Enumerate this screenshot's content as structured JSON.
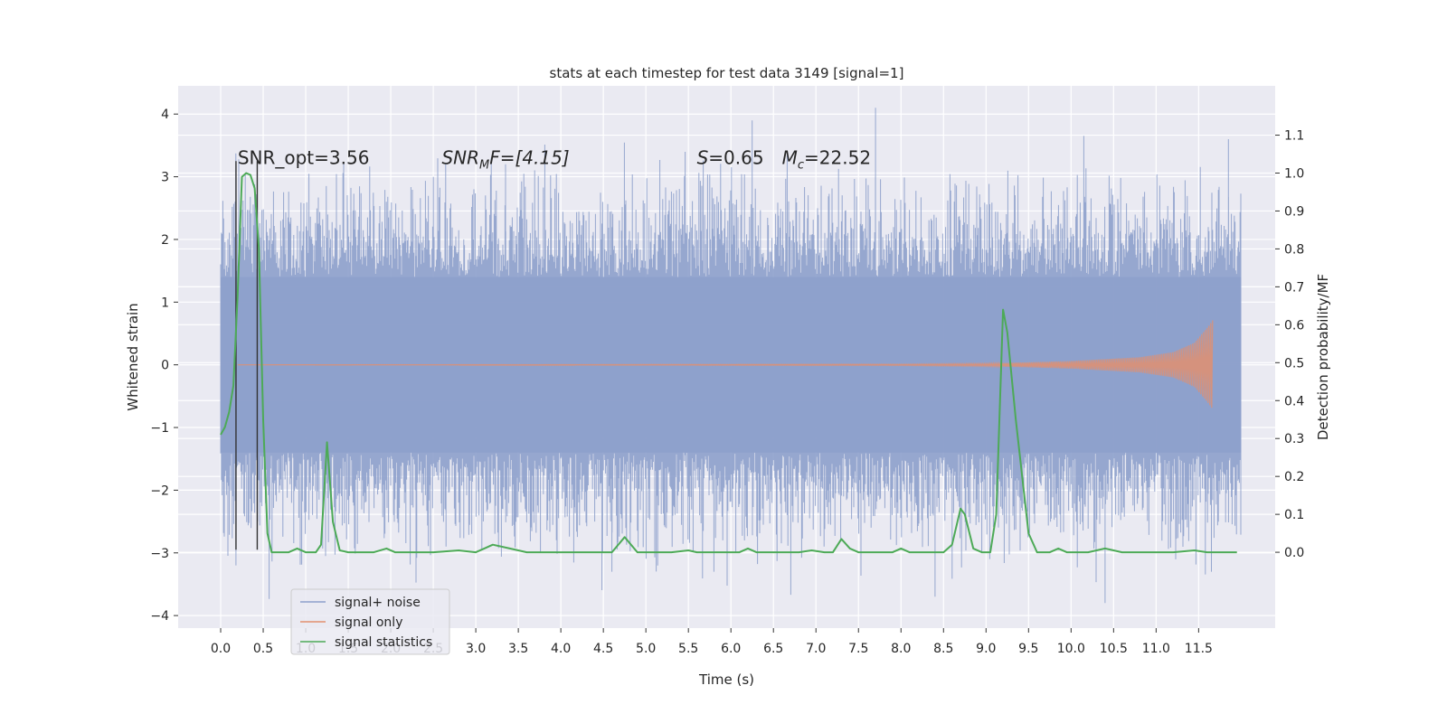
{
  "chart_data": {
    "type": "line",
    "title": "stats at each timestep for test data 3149 [signal=1]",
    "xlabel": "Time (s)",
    "ylabel": "Whitened strain",
    "ylabel_right": "Detection probability/MF",
    "xlim": [
      -0.5,
      12.4
    ],
    "ylim": [
      -4.2,
      4.45
    ],
    "ylim_right": [
      -0.2,
      1.23
    ],
    "xticks": [
      0.0,
      0.5,
      1.0,
      1.5,
      2.0,
      2.5,
      3.0,
      3.5,
      4.0,
      4.5,
      5.0,
      5.5,
      6.0,
      6.5,
      7.0,
      7.5,
      8.0,
      8.5,
      9.0,
      9.5,
      10.0,
      10.5,
      11.0,
      11.5
    ],
    "xtick_labels": [
      "0.0",
      "0.5",
      "1.0",
      "1.5",
      "2.0",
      "2.5",
      "3.0",
      "3.5",
      "4.0",
      "4.5",
      "5.0",
      "5.5",
      "6.0",
      "6.5",
      "7.0",
      "7.5",
      "8.0",
      "8.5",
      "9.0",
      "9.5",
      "10.0",
      "10.5",
      "11.0",
      "11.5"
    ],
    "yticks": [
      -4,
      -3,
      -2,
      -1,
      0,
      1,
      2,
      3,
      4
    ],
    "ytick_labels": [
      "−4",
      "−3",
      "−2",
      "−1",
      "0",
      "1",
      "2",
      "3",
      "4"
    ],
    "yticks_right": [
      0.0,
      0.1,
      0.2,
      0.3,
      0.4,
      0.5,
      0.6,
      0.7,
      0.8,
      0.9,
      1.0,
      1.1
    ],
    "ytick_labels_right": [
      "0.0",
      "0.1",
      "0.2",
      "0.3",
      "0.4",
      "0.5",
      "0.6",
      "0.7",
      "0.8",
      "0.9",
      "1.0",
      "1.1"
    ],
    "grid": true,
    "legend_position": "lower-left",
    "series": [
      {
        "name": "signal+ noise",
        "color": "#8da0cb",
        "axis": "left",
        "t_range": [
          0.0,
          12.0
        ],
        "band_amplitude": 1.4,
        "notable_peaks": [
          {
            "t": 0.18,
            "y": -3.2
          },
          {
            "t": 2.65,
            "y": -2.9
          },
          {
            "t": 3.35,
            "y": 3.2
          },
          {
            "t": 4.6,
            "y": -3.3
          },
          {
            "t": 5.8,
            "y": -3.3
          },
          {
            "t": 6.25,
            "y": 3.9
          },
          {
            "t": 7.7,
            "y": 4.1
          },
          {
            "t": 8.4,
            "y": -3.7
          },
          {
            "t": 10.4,
            "y": -3.8
          },
          {
            "t": 11.65,
            "y": -3.3
          },
          {
            "t": 11.85,
            "y": 3.6
          }
        ]
      },
      {
        "name": "signal only",
        "color": "#e28f6e",
        "axis": "left",
        "t_range": [
          0.2,
          11.67
        ],
        "envelope": [
          {
            "t": 0.2,
            "a": 0.0
          },
          {
            "t": 8.0,
            "a": 0.01
          },
          {
            "t": 9.0,
            "a": 0.02
          },
          {
            "t": 10.0,
            "a": 0.06
          },
          {
            "t": 10.8,
            "a": 0.12
          },
          {
            "t": 11.2,
            "a": 0.2
          },
          {
            "t": 11.45,
            "a": 0.35
          },
          {
            "t": 11.62,
            "a": 0.62
          },
          {
            "t": 11.67,
            "a": 0.72
          }
        ]
      },
      {
        "name": "signal statistics",
        "color": "#4daa57",
        "axis": "right",
        "points": [
          [
            0.0,
            0.31
          ],
          [
            0.05,
            0.33
          ],
          [
            0.1,
            0.37
          ],
          [
            0.15,
            0.44
          ],
          [
            0.2,
            0.68
          ],
          [
            0.25,
            0.99
          ],
          [
            0.3,
            1.0
          ],
          [
            0.35,
            0.995
          ],
          [
            0.4,
            0.96
          ],
          [
            0.45,
            0.8
          ],
          [
            0.5,
            0.35
          ],
          [
            0.55,
            0.05
          ],
          [
            0.6,
            0.0
          ],
          [
            0.8,
            0.0
          ],
          [
            0.9,
            0.01
          ],
          [
            1.0,
            0.0
          ],
          [
            1.12,
            0.0
          ],
          [
            1.18,
            0.02
          ],
          [
            1.25,
            0.29
          ],
          [
            1.32,
            0.08
          ],
          [
            1.4,
            0.005
          ],
          [
            1.5,
            0.0
          ],
          [
            1.8,
            0.0
          ],
          [
            1.95,
            0.01
          ],
          [
            2.05,
            0.0
          ],
          [
            2.5,
            0.0
          ],
          [
            2.8,
            0.005
          ],
          [
            3.0,
            0.0
          ],
          [
            3.1,
            0.01
          ],
          [
            3.2,
            0.02
          ],
          [
            3.4,
            0.01
          ],
          [
            3.6,
            0.0
          ],
          [
            4.0,
            0.0
          ],
          [
            4.6,
            0.0
          ],
          [
            4.75,
            0.04
          ],
          [
            4.9,
            0.0
          ],
          [
            5.3,
            0.0
          ],
          [
            5.5,
            0.005
          ],
          [
            5.6,
            0.0
          ],
          [
            6.1,
            0.0
          ],
          [
            6.2,
            0.01
          ],
          [
            6.3,
            0.0
          ],
          [
            6.8,
            0.0
          ],
          [
            6.95,
            0.005
          ],
          [
            7.1,
            0.0
          ],
          [
            7.2,
            0.0
          ],
          [
            7.3,
            0.035
          ],
          [
            7.4,
            0.01
          ],
          [
            7.5,
            0.0
          ],
          [
            7.9,
            0.0
          ],
          [
            8.0,
            0.01
          ],
          [
            8.1,
            0.0
          ],
          [
            8.5,
            0.0
          ],
          [
            8.6,
            0.02
          ],
          [
            8.7,
            0.115
          ],
          [
            8.75,
            0.1
          ],
          [
            8.85,
            0.01
          ],
          [
            8.95,
            0.0
          ],
          [
            9.05,
            0.0
          ],
          [
            9.12,
            0.1
          ],
          [
            9.2,
            0.64
          ],
          [
            9.25,
            0.58
          ],
          [
            9.35,
            0.35
          ],
          [
            9.5,
            0.05
          ],
          [
            9.6,
            0.0
          ],
          [
            9.75,
            0.0
          ],
          [
            9.85,
            0.01
          ],
          [
            9.95,
            0.0
          ],
          [
            10.2,
            0.0
          ],
          [
            10.4,
            0.01
          ],
          [
            10.6,
            0.0
          ],
          [
            11.2,
            0.0
          ],
          [
            11.45,
            0.005
          ],
          [
            11.6,
            0.0
          ],
          [
            11.95,
            0.0
          ]
        ]
      }
    ],
    "markers": [
      {
        "t": 0.18,
        "y_top": 3.25,
        "y_bottom": -2.95,
        "color": "#333333"
      },
      {
        "t": 0.43,
        "y_top": 3.25,
        "y_bottom": -2.95,
        "color": "#333333"
      }
    ],
    "annotations": [
      {
        "t": 0.2,
        "y": 3.2,
        "text": "SNR_opt=3.56"
      },
      {
        "t": 2.6,
        "y": 3.2,
        "text": "SNR_MF=[4.15]"
      },
      {
        "t": 5.6,
        "y": 3.2,
        "text": "S=0.65"
      },
      {
        "t": 6.6,
        "y": 3.2,
        "text": "M_c=22.52"
      }
    ]
  },
  "ui": {
    "legend": {
      "items": [
        "signal+ noise",
        "signal only",
        "signal statistics"
      ]
    },
    "annotations": {
      "snr_opt": "SNR_opt=3.56",
      "snr_mf_base": "SNR",
      "snr_mf_sub": "M",
      "snr_mf_rest": "F=[4.15]",
      "s_base": "S",
      "s_rest": "=0.65",
      "mc_base": "M",
      "mc_sub": "c",
      "mc_rest": "=22.52"
    }
  }
}
